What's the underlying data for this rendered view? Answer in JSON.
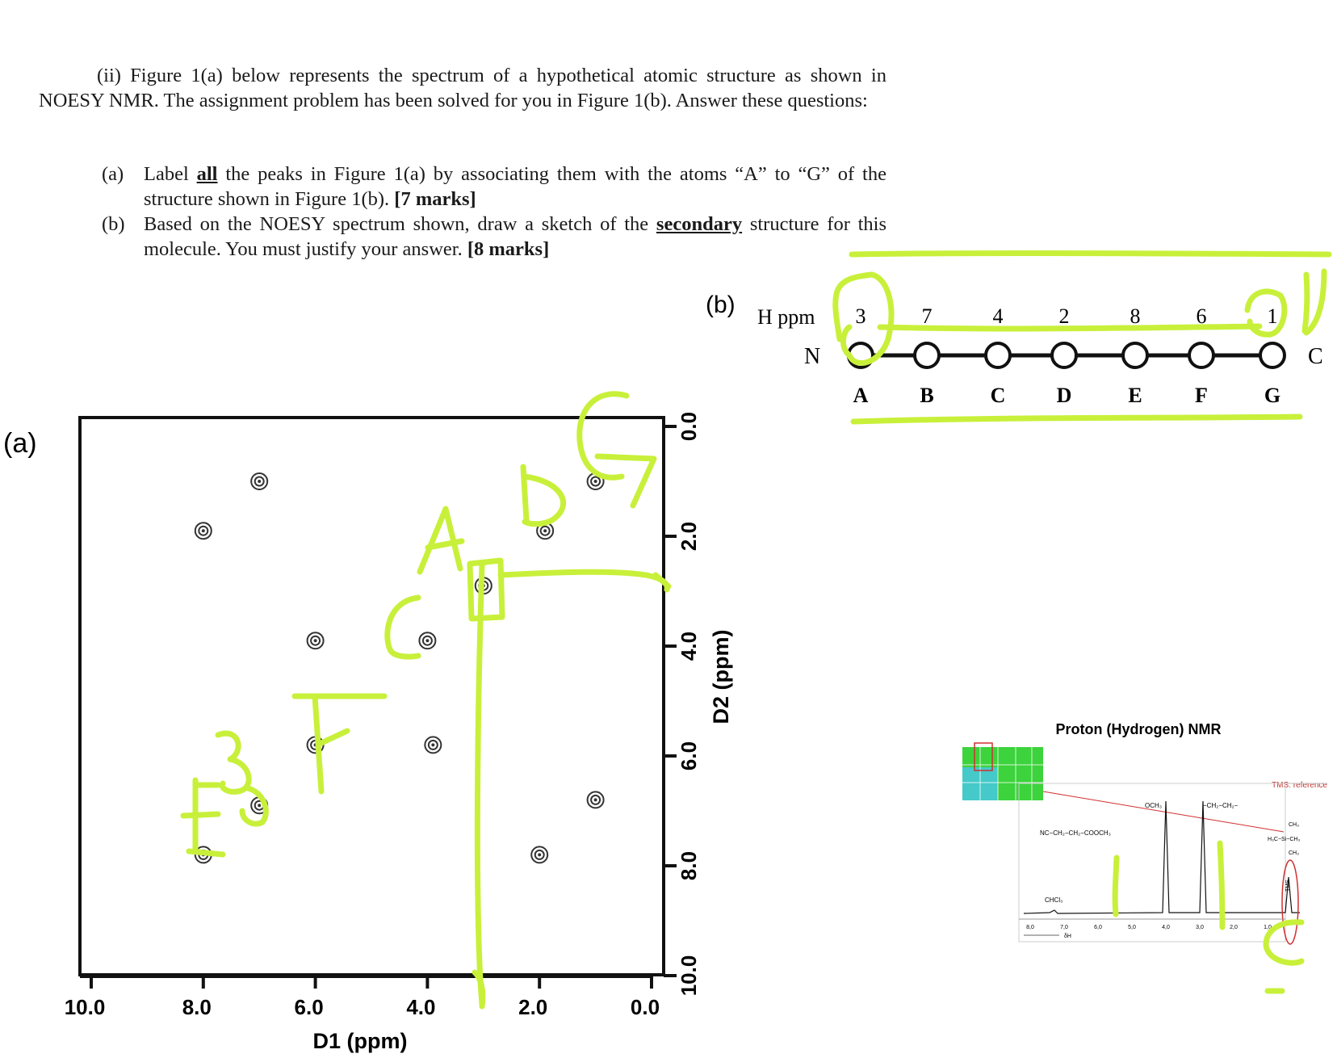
{
  "question": {
    "intro": "(ii) Figure 1(a) below represents the spectrum of a hypothetical atomic structure as shown in NOESY NMR. The assignment problem has been solved for you in Figure 1(b). Answer these questions:",
    "part_a": {
      "label": "(a)",
      "pre": "Label ",
      "emph": "all",
      "mid": " the peaks in Figure 1(a) by associating them with the atoms “A” to “G” of the structure shown in Figure 1(b). ",
      "marks": "[7 marks]"
    },
    "part_b": {
      "label": "(b)",
      "pre": "Based on the NOESY spectrum shown, draw a sketch of the ",
      "emph": "secondary",
      "mid": " structure for this molecule. You must justify your answer. ",
      "marks": "[8 marks]"
    }
  },
  "figure_a": {
    "panel_label": "(a)",
    "xlabel": "D1 (ppm)",
    "ylabel": "D2 (ppm)",
    "x_ticks": [
      "10.0",
      "8.0",
      "6.0",
      "4.0",
      "2.0",
      "0.0"
    ],
    "y_ticks": [
      "0.0",
      "2.0",
      "4.0",
      "6.0",
      "8.0",
      "10.0"
    ]
  },
  "chart_data": {
    "type": "scatter",
    "title": "",
    "xlabel": "D1 (ppm)",
    "ylabel": "D2 (ppm)",
    "xlim": [
      10.0,
      0.0
    ],
    "ylim": [
      0.0,
      10.0
    ],
    "points": [
      {
        "x": 7.0,
        "y": 1.0
      },
      {
        "x": 8.0,
        "y": 1.9
      },
      {
        "x": 1.9,
        "y": 1.9
      },
      {
        "x": 1.0,
        "y": 1.0
      },
      {
        "x": 3.0,
        "y": 2.9
      },
      {
        "x": 6.0,
        "y": 3.9
      },
      {
        "x": 4.0,
        "y": 3.9
      },
      {
        "x": 6.0,
        "y": 5.8
      },
      {
        "x": 3.9,
        "y": 5.8
      },
      {
        "x": 7.0,
        "y": 6.9
      },
      {
        "x": 1.0,
        "y": 6.8
      },
      {
        "x": 8.0,
        "y": 7.8
      },
      {
        "x": 2.0,
        "y": 7.8
      }
    ]
  },
  "figure_b": {
    "panel_label": "(b)",
    "h_ppm_label": "H ppm",
    "n_term": "N",
    "c_term": "C",
    "atoms": [
      {
        "letter": "A",
        "ppm": "3"
      },
      {
        "letter": "B",
        "ppm": "7"
      },
      {
        "letter": "C",
        "ppm": "4"
      },
      {
        "letter": "D",
        "ppm": "2"
      },
      {
        "letter": "E",
        "ppm": "8"
      },
      {
        "letter": "F",
        "ppm": "6"
      },
      {
        "letter": "G",
        "ppm": "1"
      }
    ]
  },
  "annotations": {
    "handwritten": [
      "A",
      "D",
      "G",
      "C",
      "F",
      "B",
      "E"
    ],
    "ink_color": "#c8f03a"
  },
  "inset": {
    "title": "Proton (Hydrogen) NMR",
    "tms_label": "TMS: reference",
    "formula": "NC−CH₂−CH₂−COOCH₃",
    "och3": "OCH₃",
    "ch2ch2": "−CH₂−CH₂−",
    "chcl3": "CHCl₃",
    "tms_struct_top": "CH₃",
    "tms_struct_mid": "H₃C−Si−CH₃",
    "tms_struct_bot": "CH₃",
    "tms_peak": "TMS",
    "axis_ticks": [
      "8,0",
      "7,0",
      "6,0",
      "5,0",
      "4,0",
      "3,0",
      "2,0",
      "1,0"
    ],
    "delta": "δH"
  }
}
